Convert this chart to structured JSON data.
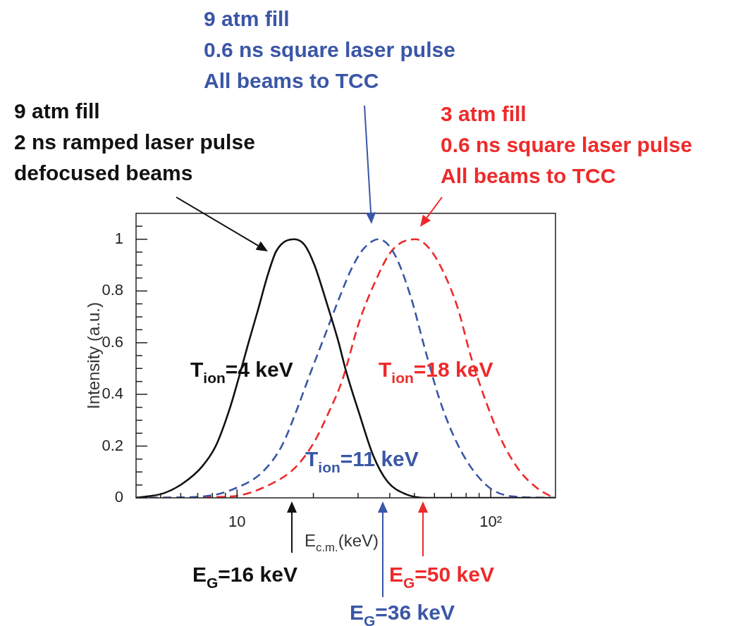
{
  "chart_data": {
    "type": "line",
    "xlabel": "E$_{c.m.}$(keV)",
    "ylabel": "Intensity (a.u.)",
    "log": "x",
    "xlim": [
      4,
      180
    ],
    "ylim": [
      0,
      1.1
    ],
    "xticks": [
      {
        "value": 5,
        "label": null
      },
      {
        "value": 6,
        "label": null
      },
      {
        "value": 7,
        "label": null
      },
      {
        "value": 8,
        "label": null
      },
      {
        "value": 9,
        "label": null
      },
      {
        "value": 10,
        "label": "10"
      },
      {
        "value": 20,
        "label": null
      },
      {
        "value": 30,
        "label": null
      },
      {
        "value": 40,
        "label": null
      },
      {
        "value": 50,
        "label": null
      },
      {
        "value": 60,
        "label": null
      },
      {
        "value": 70,
        "label": null
      },
      {
        "value": 80,
        "label": null
      },
      {
        "value": 90,
        "label": null
      },
      {
        "value": 100,
        "label": "10²"
      }
    ],
    "yticks": [
      0,
      {
        "value": 0.05,
        "label": null
      },
      {
        "value": 0.1,
        "label": null
      },
      {
        "value": 0.15,
        "label": null
      },
      0.2,
      {
        "value": 0.25,
        "label": null
      },
      {
        "value": 0.3,
        "label": null
      },
      {
        "value": 0.35,
        "label": null
      },
      0.4,
      {
        "value": 0.45,
        "label": null
      },
      {
        "value": 0.5,
        "label": null
      },
      {
        "value": 0.55,
        "label": null
      },
      0.6,
      {
        "value": 0.65,
        "label": null
      },
      {
        "value": 0.7,
        "label": null
      },
      {
        "value": 0.75,
        "label": null
      },
      0.8,
      {
        "value": 0.85,
        "label": null
      },
      {
        "value": 0.9,
        "label": null
      },
      {
        "value": 0.95,
        "label": null
      },
      1,
      {
        "value": 1.05,
        "label": null
      }
    ],
    "grid": false,
    "legend": false,
    "marker": "none",
    "series": [
      {
        "color": "#111111",
        "line_style": "solid",
        "x": [
          4,
          5.15,
          6.1,
          7.24,
          8.24,
          9.36,
          10.2,
          11.1,
          12.1,
          13.2,
          14.3,
          16.8,
          18.5,
          20.2,
          22.4,
          25,
          26.9,
          30.3,
          34.4,
          39.1,
          46.3,
          56,
          180
        ],
        "values": [
          0,
          0.018,
          0.055,
          0.118,
          0.2,
          0.345,
          0.47,
          0.6,
          0.727,
          0.86,
          0.955,
          1,
          0.977,
          0.9,
          0.764,
          0.61,
          0.49,
          0.327,
          0.164,
          0.064,
          0.014,
          0,
          0
        ]
      },
      {
        "color": "#3a56a6",
        "line_style": "dashed",
        "x": [
          4,
          7.24,
          9.8,
          12.6,
          15,
          17,
          19.3,
          22,
          25,
          28.4,
          31.6,
          36.2,
          41.6,
          48.3,
          54.9,
          62.4,
          71,
          82.4,
          99.8,
          123.6,
          180
        ],
        "values": [
          0,
          0.005,
          0.036,
          0.1,
          0.2,
          0.327,
          0.473,
          0.618,
          0.76,
          0.89,
          0.964,
          1,
          0.945,
          0.78,
          0.58,
          0.39,
          0.245,
          0.127,
          0.036,
          0.005,
          0
        ]
      },
      {
        "color": "#ee2a2a",
        "line_style": "dashed",
        "x": [
          4,
          9.4,
          13.7,
          17,
          20.2,
          22.9,
          26,
          30.3,
          34.4,
          40.7,
          50.5,
          57.3,
          65.1,
          74,
          84.1,
          95.7,
          108.7,
          129,
          153,
          173
        ],
        "values": [
          0,
          0.005,
          0.055,
          0.118,
          0.218,
          0.327,
          0.455,
          0.68,
          0.818,
          0.955,
          1,
          0.964,
          0.873,
          0.736,
          0.536,
          0.373,
          0.236,
          0.109,
          0.036,
          0.005
        ]
      }
    ],
    "annotations": [
      "9 atm fill\n2 ns ramped laser pulse\ndefocused beams",
      "T$_{ion}$=4 keV",
      "E$_{G}$=16 keV",
      "9 atm fill\n0.6 ns square laser pulse\nAll beams to TCC",
      "T$_{ion}$=11 keV",
      "E$_{G}$=36 keV",
      "3 atm fill\n0.6 ns square laser pulse\nAll beams to TCC",
      "T$_{ion}$=18 keV",
      "E$_{G}$=50 keV"
    ]
  }
}
